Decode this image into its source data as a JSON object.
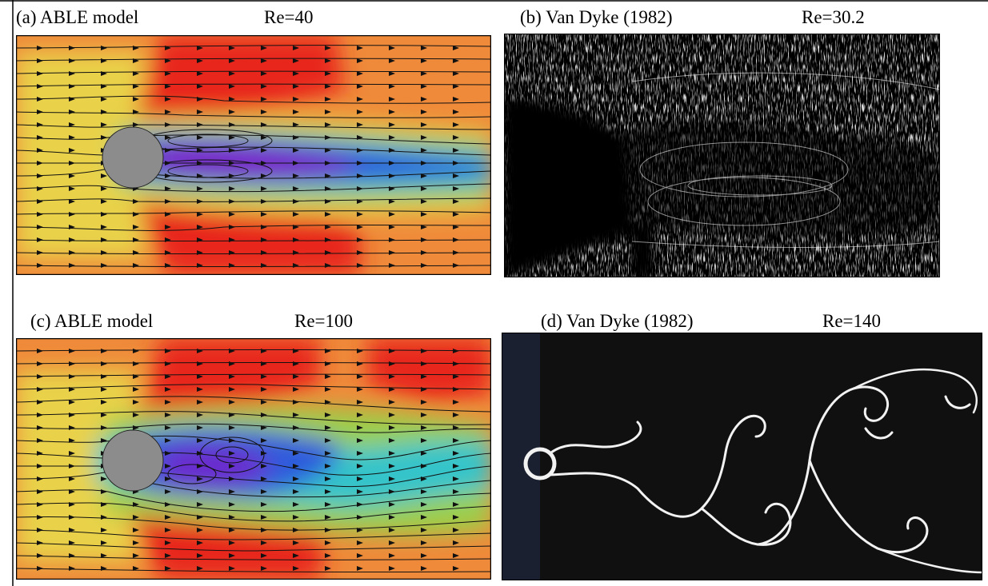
{
  "panels": [
    {
      "id": "a",
      "caption": "(a) ABLE model",
      "re": "Re=40"
    },
    {
      "id": "b",
      "caption": "(b) Van Dyke (1982)",
      "re": "Re=30.2"
    },
    {
      "id": "c",
      "caption": "(c) ABLE model",
      "re": "Re=100"
    },
    {
      "id": "d",
      "caption": "(d) Van Dyke (1982)",
      "re": "Re=140"
    }
  ],
  "colors": {
    "red": "#e8261c",
    "orange": "#ef8a3a",
    "yellow": "#e9d24a",
    "green": "#9ccf4a",
    "cyan": "#35c4c9",
    "blue": "#2f5bdc",
    "violet": "#7a1fc9",
    "cylinder": "#8c8c8c",
    "streamline": "#111111",
    "photo_bg": "#000000",
    "photo_fg": "#ffffff"
  }
}
